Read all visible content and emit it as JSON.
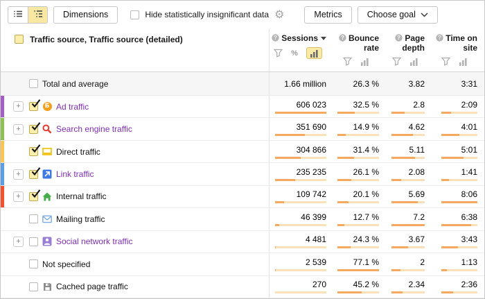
{
  "toolbar": {
    "view_switch": [
      {
        "name": "flat-list-view",
        "active": false
      },
      {
        "name": "tree-view",
        "active": true
      }
    ],
    "dimensions_label": "Dimensions",
    "hide_insignificant_label": "Hide statistically insignificant data",
    "hide_insignificant_checked": false,
    "metrics_label": "Metrics",
    "choose_goal_label": "Choose goal"
  },
  "header": {
    "dimension_label": "Traffic source, Traffic source (detailed)",
    "dimension_checked": true,
    "columns": [
      {
        "label": "Sessions",
        "sorted": true,
        "tools": [
          "filter",
          "percent",
          "chart"
        ],
        "active_tool": "chart",
        "width_class": "w-sessions",
        "track_class": "tw-sessions"
      },
      {
        "label": "Bounce rate",
        "sorted": false,
        "tools": [
          "filter",
          "chart"
        ],
        "active_tool": null,
        "width_class": "w-bounce",
        "track_class": "tw-bounce"
      },
      {
        "label": "Page depth",
        "sorted": false,
        "tools": [
          "filter",
          "chart"
        ],
        "active_tool": null,
        "width_class": "w-depth",
        "track_class": "tw-depth"
      },
      {
        "label": "Time on site",
        "sorted": false,
        "tools": [
          "filter",
          "chart"
        ],
        "active_tool": null,
        "width_class": "w-time",
        "track_class": "tw-time"
      }
    ]
  },
  "table": {
    "total_row": {
      "label": "Total and average",
      "checked": false,
      "values": [
        "1.66 million",
        "26.3 %",
        "3.82",
        "3:31"
      ]
    },
    "rows": [
      {
        "label": "Ad traffic",
        "icon": "begun-coin-icon",
        "stripe": "#a55fc4",
        "expandable": true,
        "checked": true,
        "link": true,
        "values": [
          {
            "text": "606 023",
            "num": 606023
          },
          {
            "text": "32.5 %",
            "num": 32.5
          },
          {
            "text": "2.8",
            "num": 2.8
          },
          {
            "text": "2:09",
            "num": 129
          }
        ]
      },
      {
        "label": "Search engine traffic",
        "icon": "magnifier-icon",
        "stripe": "#8dc152",
        "expandable": true,
        "checked": true,
        "link": true,
        "values": [
          {
            "text": "351 690",
            "num": 351690
          },
          {
            "text": "14.9 %",
            "num": 14.9
          },
          {
            "text": "4.62",
            "num": 4.62
          },
          {
            "text": "4:01",
            "num": 241
          }
        ]
      },
      {
        "label": "Direct traffic",
        "icon": "browser-window-icon",
        "stripe": "#fbc551",
        "expandable": false,
        "checked": true,
        "link": false,
        "values": [
          {
            "text": "304 866",
            "num": 304866
          },
          {
            "text": "31.4 %",
            "num": 31.4
          },
          {
            "text": "5.11",
            "num": 5.11
          },
          {
            "text": "5:01",
            "num": 301
          }
        ]
      },
      {
        "label": "Link traffic",
        "icon": "external-arrow-icon",
        "stripe": "#5c9de8",
        "expandable": true,
        "checked": true,
        "link": true,
        "values": [
          {
            "text": "235 235",
            "num": 235235
          },
          {
            "text": "26.1 %",
            "num": 26.1
          },
          {
            "text": "2.08",
            "num": 2.08
          },
          {
            "text": "1:41",
            "num": 101
          }
        ]
      },
      {
        "label": "Internal traffic",
        "icon": "home-icon",
        "stripe": "#f4502e",
        "expandable": true,
        "checked": true,
        "link": false,
        "values": [
          {
            "text": "109 742",
            "num": 109742
          },
          {
            "text": "20.1 %",
            "num": 20.1
          },
          {
            "text": "5.69",
            "num": 5.69
          },
          {
            "text": "8:06",
            "num": 486
          }
        ]
      },
      {
        "label": "Mailing traffic",
        "icon": "envelope-icon",
        "stripe": null,
        "expandable": false,
        "checked": false,
        "link": false,
        "values": [
          {
            "text": "46 399",
            "num": 46399
          },
          {
            "text": "12.7 %",
            "num": 12.7
          },
          {
            "text": "7.2",
            "num": 7.2
          },
          {
            "text": "6:38",
            "num": 398
          }
        ]
      },
      {
        "label": "Social network traffic",
        "icon": "person-icon",
        "stripe": null,
        "expandable": true,
        "checked": false,
        "link": true,
        "values": [
          {
            "text": "4 481",
            "num": 4481
          },
          {
            "text": "24.3 %",
            "num": 24.3
          },
          {
            "text": "3.67",
            "num": 3.67
          },
          {
            "text": "3:43",
            "num": 223
          }
        ]
      },
      {
        "label": "Not specified",
        "icon": null,
        "stripe": null,
        "expandable": false,
        "checked": false,
        "link": false,
        "values": [
          {
            "text": "2 539",
            "num": 2539
          },
          {
            "text": "77.1 %",
            "num": 77.1
          },
          {
            "text": "2",
            "num": 2
          },
          {
            "text": "1:13",
            "num": 73
          }
        ]
      },
      {
        "label": "Cached page traffic",
        "icon": "floppy-icon",
        "stripe": null,
        "expandable": false,
        "checked": false,
        "link": false,
        "values": [
          {
            "text": "270",
            "num": 270
          },
          {
            "text": "45.2 %",
            "num": 45.2
          },
          {
            "text": "2.34",
            "num": 2.34
          },
          {
            "text": "2:36",
            "num": 156
          }
        ]
      }
    ]
  },
  "colors": {
    "bar_fill": "#f5a95f",
    "bar_track": "#fbe0ba",
    "link_purple": "#7d2eb0",
    "active_yellow": "#f8e8a2"
  }
}
